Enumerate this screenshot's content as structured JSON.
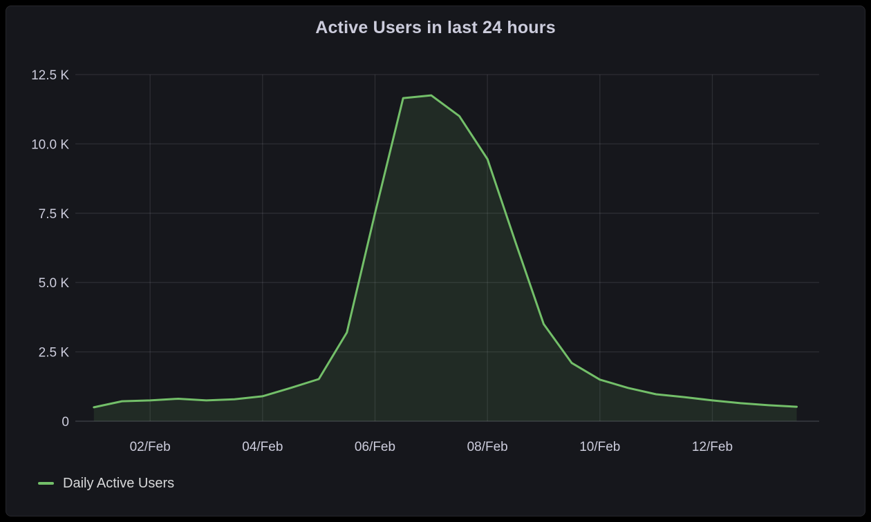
{
  "panel": {
    "title": "Active Users in last 24 hours",
    "colors": {
      "page_background": "#000000",
      "panel_background": "#16171c",
      "panel_border": "#26272c",
      "title_text": "#ccccdc",
      "tick_text": "#ccccdc",
      "grid": "rgba(204,204,220,0.12)",
      "axis_line": "rgba(204,204,220,0.20)",
      "series_green": "#73bf69"
    }
  },
  "legend": {
    "items": [
      {
        "label": "Daily Active Users",
        "color": "#73bf69"
      }
    ]
  },
  "chart_data": {
    "type": "area",
    "title": "Active Users in last 24 hours",
    "xlabel": "",
    "ylabel": "",
    "grid": true,
    "legend_position": "bottom-left",
    "ylim": [
      0,
      12500
    ],
    "xlim_days": [
      0.67,
      13.9
    ],
    "x_ticks": {
      "days": [
        2,
        4,
        6,
        8,
        10,
        12
      ],
      "labels": [
        "02/Feb",
        "04/Feb",
        "06/Feb",
        "08/Feb",
        "10/Feb",
        "12/Feb"
      ]
    },
    "y_ticks": {
      "values": [
        0,
        2500,
        5000,
        7500,
        10000,
        12500
      ],
      "labels": [
        "0",
        "2.5 K",
        "5.0 K",
        "7.5 K",
        "10.0 K",
        "12.5 K"
      ]
    },
    "series": [
      {
        "name": "Daily Active Users",
        "color": "#73bf69",
        "fill_opacity": 0.12,
        "x_days": [
          1,
          1.5,
          2,
          2.5,
          3,
          3.5,
          4,
          4.5,
          5,
          5.5,
          6,
          6.5,
          7,
          7.5,
          8,
          8.5,
          9,
          9.5,
          10,
          10.5,
          11,
          11.5,
          12,
          12.5,
          13,
          13.5
        ],
        "values": [
          500,
          720,
          750,
          810,
          750,
          790,
          900,
          1200,
          1520,
          3200,
          7500,
          11650,
          11750,
          11000,
          9450,
          6450,
          3500,
          2100,
          1500,
          1200,
          970,
          870,
          750,
          650,
          575,
          520
        ]
      }
    ]
  }
}
